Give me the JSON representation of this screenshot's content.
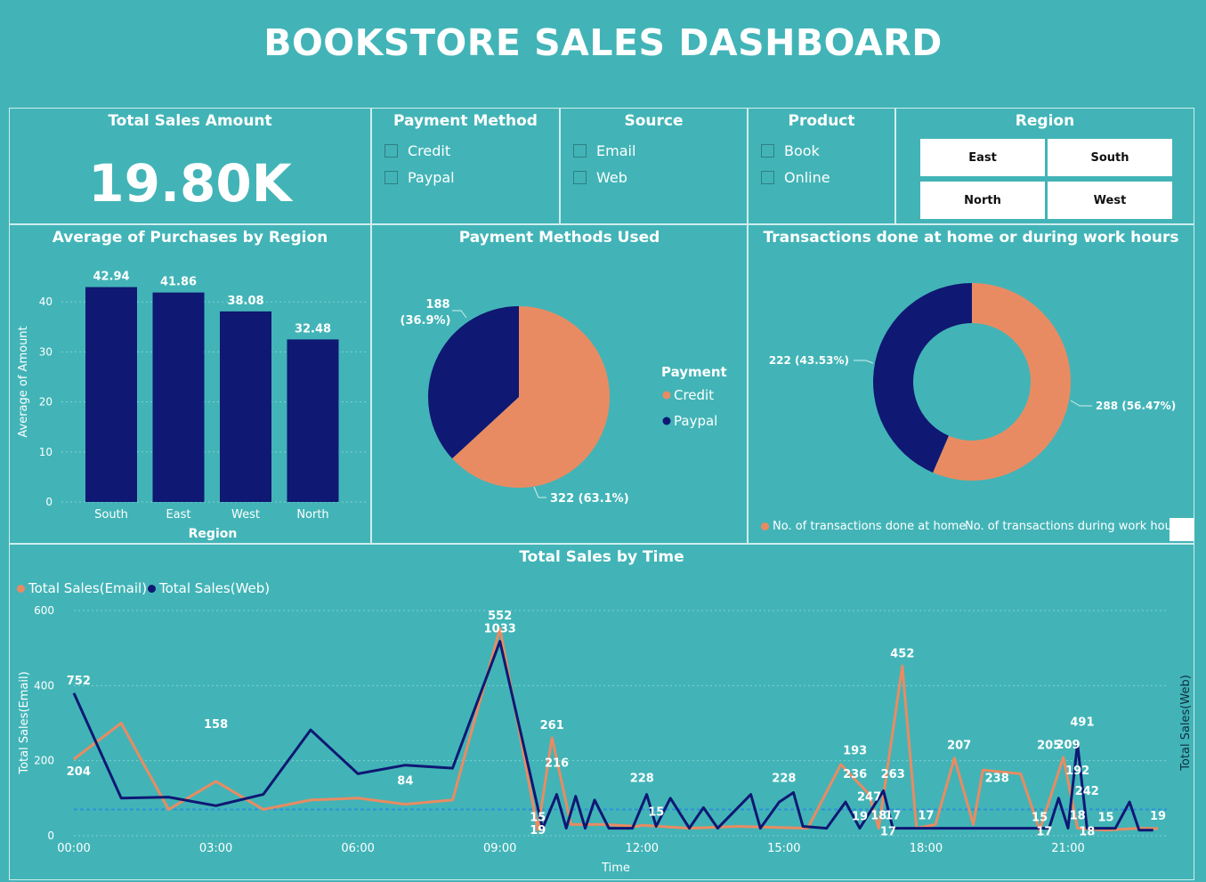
{
  "title": "BOOKSTORE SALES DASHBOARD",
  "kpi": {
    "label": "Total Sales Amount",
    "value": "19.80K"
  },
  "filters": {
    "payment": {
      "title": "Payment Method",
      "options": [
        "Credit",
        "Paypal"
      ]
    },
    "source": {
      "title": "Source",
      "options": [
        "Email",
        "Web"
      ]
    },
    "product": {
      "title": "Product",
      "options": [
        "Book",
        "Online"
      ]
    },
    "region": {
      "title": "Region",
      "tiles": [
        "East",
        "South",
        "North",
        "West"
      ]
    }
  },
  "colors": {
    "navy": "#0f1873",
    "orange": "#e98b62",
    "teal": "#42b4b7",
    "ref": "#2e8fd8"
  },
  "chart_data": [
    {
      "type": "bar",
      "title": "Average of Purchases by Region",
      "categories": [
        "South",
        "East",
        "West",
        "North"
      ],
      "values": [
        42.94,
        41.86,
        38.08,
        32.48
      ],
      "labels": [
        "42.94",
        "41.86",
        "38.08",
        "32.48"
      ],
      "xlabel": "Region",
      "ylabel": "Average of Amount",
      "ylim": [
        0,
        45
      ],
      "yticks": [
        "0",
        "10",
        "20",
        "30",
        "40"
      ],
      "grid": true
    },
    {
      "type": "pie",
      "title": "Payment Methods Used",
      "legend_title": "Payment",
      "slices": [
        {
          "name": "Credit",
          "value": 322,
          "label": "322 (63.1%)"
        },
        {
          "name": "Paypal",
          "value": 188,
          "label_line1": "188",
          "label_line2": "(36.9%)"
        }
      ],
      "legend": "right"
    },
    {
      "type": "pie",
      "donut": true,
      "title": "Transactions done at home or during work hours",
      "slices": [
        {
          "name": "No. of transactions done at home",
          "value": 288,
          "label": "288 (56.47%)"
        },
        {
          "name": "No. of transactions during work hou",
          "value": 222,
          "label": "222 (43.53%)"
        }
      ],
      "legend": "bottom"
    },
    {
      "type": "line",
      "title": "Total Sales by Time",
      "xlabel": "Time",
      "ylabel": "Total Sales(Email)",
      "y2label": "Total Sales(Web)",
      "ylim": [
        0,
        600
      ],
      "yticks": [
        "0",
        "200",
        "400",
        "600"
      ],
      "xticks": [
        "00:00",
        "03:00",
        "06:00",
        "09:00",
        "12:00",
        "15:00",
        "18:00",
        "21:00"
      ],
      "legend": "top-left",
      "series": [
        {
          "name": "Total Sales(Email)"
        },
        {
          "name": "Total Sales(Web)"
        }
      ],
      "points_email": [
        [
          0,
          204
        ],
        [
          1,
          300
        ],
        [
          2,
          70
        ],
        [
          3,
          145
        ],
        [
          4,
          70
        ],
        [
          5,
          95
        ],
        [
          6,
          100
        ],
        [
          7,
          84
        ],
        [
          8,
          95
        ],
        [
          9,
          552
        ],
        [
          9.8,
          15
        ],
        [
          10.1,
          261
        ],
        [
          10.5,
          30
        ],
        [
          11.2,
          30
        ],
        [
          11.9,
          25
        ],
        [
          12,
          28
        ],
        [
          13,
          20
        ],
        [
          14,
          25
        ],
        [
          15.5,
          20
        ],
        [
          16.2,
          190
        ],
        [
          16.8,
          110
        ],
        [
          17,
          20
        ],
        [
          17.5,
          452
        ],
        [
          17.8,
          20
        ],
        [
          18.2,
          30
        ],
        [
          18.6,
          207
        ],
        [
          19,
          30
        ],
        [
          19.2,
          175
        ],
        [
          20,
          165
        ],
        [
          20.4,
          15
        ],
        [
          20.9,
          209
        ],
        [
          21.2,
          20
        ],
        [
          21.8,
          15
        ],
        [
          22.5,
          20
        ],
        [
          22.9,
          19
        ]
      ],
      "points_web": [
        [
          0,
          380
        ],
        [
          1,
          100
        ],
        [
          2,
          103
        ],
        [
          3,
          80
        ],
        [
          4,
          110
        ],
        [
          5,
          282
        ],
        [
          6,
          165
        ],
        [
          7,
          188
        ],
        [
          8,
          180
        ],
        [
          9,
          518
        ],
        [
          9.9,
          19
        ],
        [
          10.2,
          110
        ],
        [
          10.4,
          20
        ],
        [
          10.6,
          105
        ],
        [
          10.8,
          20
        ],
        [
          11,
          95
        ],
        [
          11.3,
          20
        ],
        [
          11.8,
          20
        ],
        [
          12.1,
          110
        ],
        [
          12.3,
          25
        ],
        [
          12.6,
          100
        ],
        [
          13,
          20
        ],
        [
          13.3,
          75
        ],
        [
          13.6,
          20
        ],
        [
          14.3,
          110
        ],
        [
          14.5,
          20
        ],
        [
          14.9,
          90
        ],
        [
          15.2,
          115
        ],
        [
          15.4,
          25
        ],
        [
          15.9,
          20
        ],
        [
          16.3,
          90
        ],
        [
          16.6,
          20
        ],
        [
          17.1,
          120
        ],
        [
          17.3,
          20
        ],
        [
          17.9,
          20
        ],
        [
          18.5,
          20
        ],
        [
          19.4,
          20
        ],
        [
          20,
          20
        ],
        [
          20.6,
          20
        ],
        [
          20.8,
          100
        ],
        [
          21,
          20
        ],
        [
          21.2,
          245
        ],
        [
          21.4,
          20
        ],
        [
          21.6,
          20
        ],
        [
          22,
          20
        ],
        [
          22.3,
          90
        ],
        [
          22.5,
          15
        ],
        [
          22.8,
          15
        ]
      ],
      "labels_email": [
        {
          "x": 0.1,
          "y": 204,
          "t": "204",
          "dy": 18
        },
        {
          "x": 3,
          "y": 145,
          "t": "158",
          "dy": -60
        },
        {
          "x": 7,
          "y": 84,
          "t": "84",
          "dy": -22
        },
        {
          "x": 9,
          "y": 552,
          "t": "552",
          "dy": -10
        },
        {
          "x": 10.1,
          "y": 261,
          "t": "261",
          "dy": -10
        },
        {
          "x": 10.2,
          "y": 160,
          "t": "216",
          "dy": -10
        },
        {
          "x": 12,
          "y": 120,
          "t": "228",
          "dy": -10
        },
        {
          "x": 15,
          "y": 120,
          "t": "228",
          "dy": -10
        },
        {
          "x": 16.5,
          "y": 193,
          "t": "193",
          "dy": -10
        },
        {
          "x": 16.5,
          "y": 130,
          "t": "236",
          "dy": -10
        },
        {
          "x": 17.5,
          "y": 452,
          "t": "452",
          "dy": -10
        },
        {
          "x": 18.7,
          "y": 207,
          "t": "207",
          "dy": -10
        },
        {
          "x": 19.5,
          "y": 120,
          "t": "238",
          "dy": -10
        },
        {
          "x": 20.6,
          "y": 207,
          "t": "205",
          "dy": -10
        },
        {
          "x": 21,
          "y": 209,
          "t": "209",
          "dy": -10
        },
        {
          "x": 21.2,
          "y": 140,
          "t": "192",
          "dy": -10
        },
        {
          "x": 9.8,
          "y": 15,
          "t": "15",
          "dy": -10
        },
        {
          "x": 16.6,
          "y": 18,
          "t": "19",
          "dy": -10
        },
        {
          "x": 17,
          "y": 20,
          "t": "18",
          "dy": -10
        },
        {
          "x": 17.3,
          "y": 20,
          "t": "17",
          "dy": -10
        },
        {
          "x": 18,
          "y": 20,
          "t": "17",
          "dy": -10
        },
        {
          "x": 20.4,
          "y": 15,
          "t": "15",
          "dy": -10
        },
        {
          "x": 21.2,
          "y": 20,
          "t": "18",
          "dy": -10
        },
        {
          "x": 21.8,
          "y": 15,
          "t": "15",
          "dy": -10
        },
        {
          "x": 22.9,
          "y": 19,
          "t": "19",
          "dy": -10
        }
      ],
      "labels_web": [
        {
          "x": 0.1,
          "y": 380,
          "t": "752",
          "dy": -10
        },
        {
          "x": 9,
          "y": 518,
          "t": "1033",
          "dy": -10
        },
        {
          "x": 9.8,
          "y": 19,
          "t": "19",
          "dy": 6
        },
        {
          "x": 12.3,
          "y": 30,
          "t": "15",
          "dy": -10
        },
        {
          "x": 16.8,
          "y": 70,
          "t": "247",
          "dy": -10
        },
        {
          "x": 17.3,
          "y": 130,
          "t": "263",
          "dy": -10
        },
        {
          "x": 17.2,
          "y": 20,
          "t": "17",
          "dy": 8
        },
        {
          "x": 20.5,
          "y": 20,
          "t": "17",
          "dy": 8
        },
        {
          "x": 21.3,
          "y": 245,
          "t": "491",
          "dy": -20
        },
        {
          "x": 21.4,
          "y": 85,
          "t": "242",
          "dy": -10
        },
        {
          "x": 21.4,
          "y": 20,
          "t": "18",
          "dy": 8
        }
      ]
    }
  ]
}
